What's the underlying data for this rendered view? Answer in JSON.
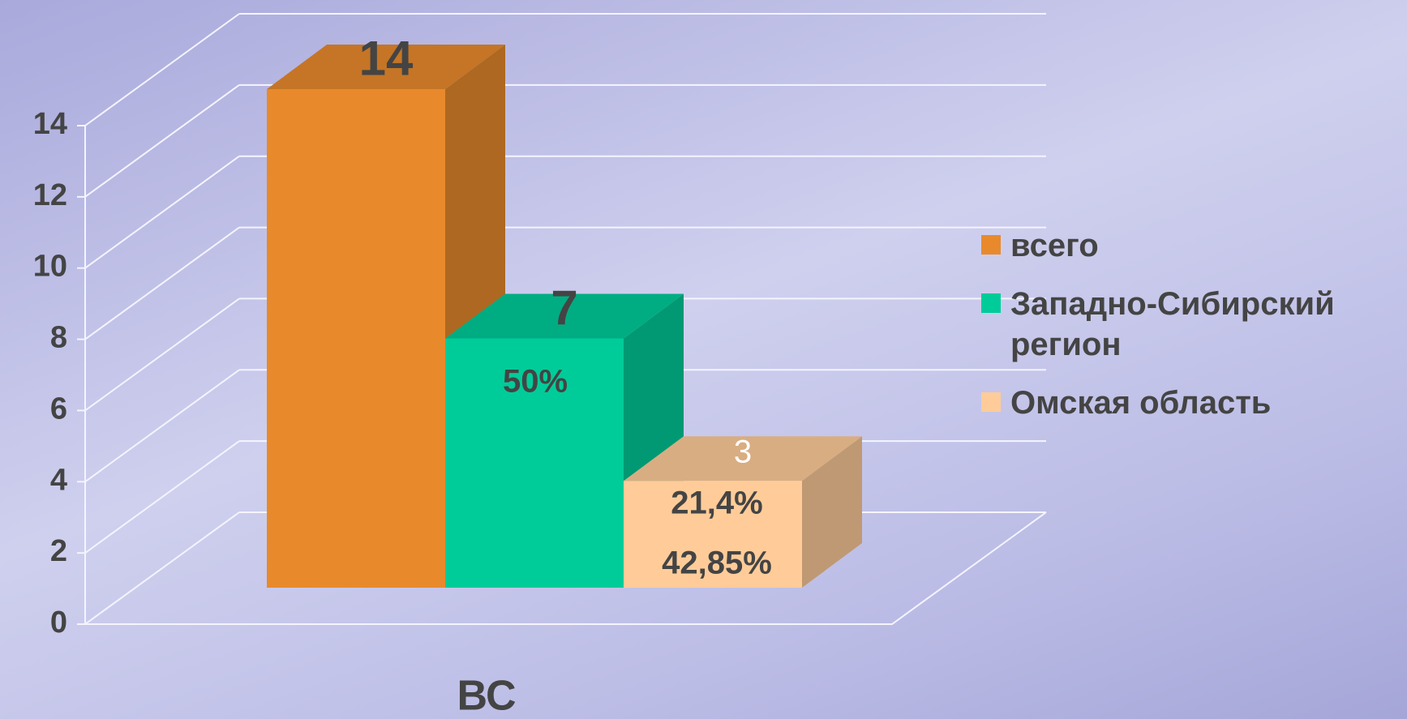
{
  "chart_data": {
    "type": "bar3d",
    "categories": [
      "ВС"
    ],
    "series": [
      {
        "name": "всего",
        "color": "#e88a2c",
        "values": [
          14
        ]
      },
      {
        "name": "Западно-Сибирский регион",
        "color": "#00cc99",
        "values": [
          7
        ]
      },
      {
        "name": "Омская область",
        "color": "#ffcc99",
        "values": [
          3
        ]
      }
    ],
    "annotations": [
      "50%",
      "21,4%",
      "42,85%"
    ],
    "ylim": [
      0,
      14
    ],
    "yticks": [
      0,
      2,
      4,
      6,
      8,
      10,
      12,
      14
    ],
    "grid": true,
    "legend": "right"
  }
}
